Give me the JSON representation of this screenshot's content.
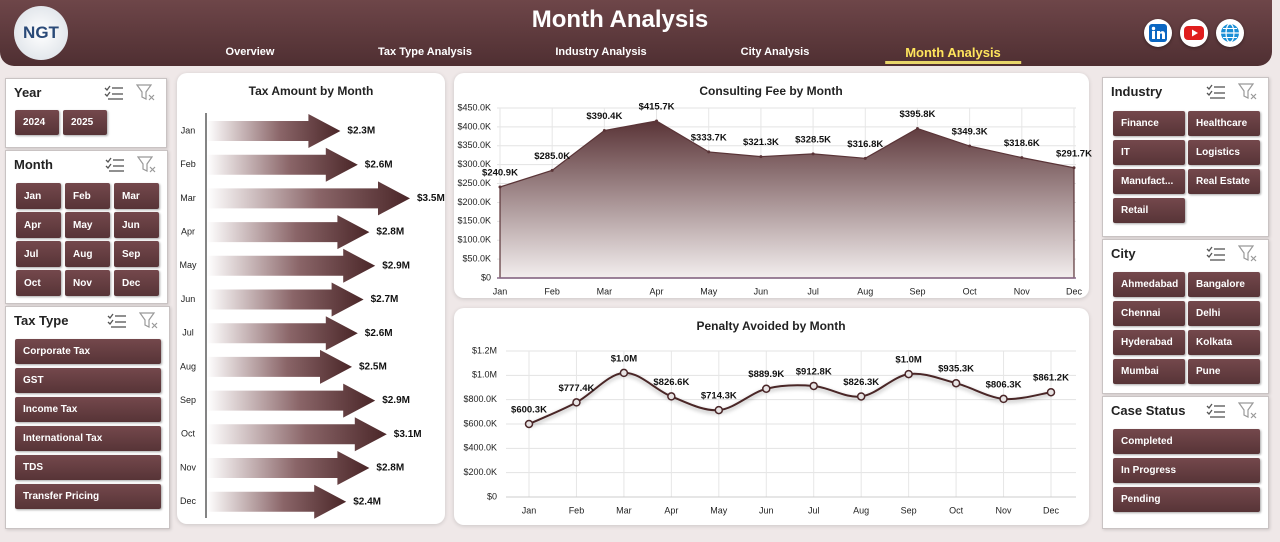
{
  "header": {
    "logo": "NGT",
    "title": "Month Analysis",
    "nav": [
      "Overview",
      "Tax Type Analysis",
      "Industry Analysis",
      "City Analysis",
      "Month Analysis"
    ],
    "active_nav": 4
  },
  "slicers": [
    {
      "title": "Year",
      "items": [
        "2024",
        "2025"
      ]
    },
    {
      "title": "Month",
      "items": [
        "Jan",
        "Feb",
        "Mar",
        "Apr",
        "May",
        "Jun",
        "Jul",
        "Aug",
        "Sep",
        "Oct",
        "Nov",
        "Dec"
      ]
    },
    {
      "title": "Tax Type",
      "items": [
        "Corporate Tax",
        "GST",
        "Income Tax",
        "International Tax",
        "TDS",
        "Transfer Pricing"
      ]
    },
    {
      "title": "Industry",
      "items": [
        "Finance",
        "Healthcare",
        "IT",
        "Logistics",
        "Manufact...",
        "Real Estate",
        "Retail"
      ]
    },
    {
      "title": "City",
      "items": [
        "Ahmedabad",
        "Bangalore",
        "Chennai",
        "Delhi",
        "Hyderabad",
        "Kolkata",
        "Mumbai",
        "Pune"
      ]
    },
    {
      "title": "Case Status",
      "items": [
        "Completed",
        "In Progress",
        "Pending"
      ]
    }
  ],
  "chart_data": [
    {
      "type": "arrow-bar",
      "title": "Tax Amount by Month",
      "categories": [
        "Jan",
        "Feb",
        "Mar",
        "Apr",
        "May",
        "Jun",
        "Jul",
        "Aug",
        "Sep",
        "Oct",
        "Nov",
        "Dec"
      ],
      "values": [
        2.3,
        2.6,
        3.5,
        2.8,
        2.9,
        2.7,
        2.6,
        2.5,
        2.9,
        3.1,
        2.8,
        2.4
      ],
      "value_labels": [
        "$2.3M",
        "$2.6M",
        "$3.5M",
        "$2.8M",
        "$2.9M",
        "$2.7M",
        "$2.6M",
        "$2.5M",
        "$2.9M",
        "$3.1M",
        "$2.8M",
        "$2.4M"
      ],
      "color": "#4a2628"
    },
    {
      "type": "area",
      "title": "Consulting Fee by Month",
      "categories": [
        "Jan",
        "Feb",
        "Mar",
        "Apr",
        "May",
        "Jun",
        "Jul",
        "Aug",
        "Sep",
        "Oct",
        "Nov",
        "Dec"
      ],
      "values": [
        240.9,
        285.0,
        390.4,
        415.7,
        333.7,
        321.3,
        328.5,
        316.8,
        395.8,
        349.3,
        318.6,
        291.7
      ],
      "value_labels": [
        "$240.9K",
        "$285.0K",
        "$390.4K",
        "$415.7K",
        "$333.7K",
        "$321.3K",
        "$328.5K",
        "$316.8K",
        "$395.8K",
        "$349.3K",
        "$318.6K",
        "$291.7K"
      ],
      "ylim": [
        0,
        450
      ],
      "yticks": [
        {
          "value": 0,
          "label": "$0"
        },
        {
          "value": 50,
          "label": "$50.0K"
        },
        {
          "value": 100,
          "label": "$100.0K"
        },
        {
          "value": 150,
          "label": "$150.0K"
        },
        {
          "value": 200,
          "label": "$200.0K"
        },
        {
          "value": 250,
          "label": "$250.0K"
        },
        {
          "value": 300,
          "label": "$300.0K"
        },
        {
          "value": 350,
          "label": "$350.0K"
        },
        {
          "value": 400,
          "label": "$400.0K"
        },
        {
          "value": 450,
          "label": "$450.0K"
        }
      ],
      "color": "#5a3437",
      "grid": true
    },
    {
      "type": "line",
      "title": "Penalty Avoided by Month",
      "categories": [
        "Jan",
        "Feb",
        "Mar",
        "Apr",
        "May",
        "Jun",
        "Jul",
        "Aug",
        "Sep",
        "Oct",
        "Nov",
        "Dec"
      ],
      "values": [
        600.3,
        777.4,
        1020,
        826.6,
        714.3,
        889.9,
        912.8,
        826.3,
        1010,
        935.3,
        806.3,
        861.2
      ],
      "value_labels": [
        "$600.3K",
        "$777.4K",
        "$1.0M",
        "$826.6K",
        "$714.3K",
        "$889.9K",
        "$912.8K",
        "$826.3K",
        "$1.0M",
        "$935.3K",
        "$806.3K",
        "$861.2K"
      ],
      "ylim": [
        0,
        1200
      ],
      "yticks": [
        {
          "value": 0,
          "label": "$0"
        },
        {
          "value": 200,
          "label": "$200.0K"
        },
        {
          "value": 400,
          "label": "$400.0K"
        },
        {
          "value": 600,
          "label": "$600.0K"
        },
        {
          "value": 800,
          "label": "$800.0K"
        },
        {
          "value": 1000,
          "label": "$1.0M"
        },
        {
          "value": 1200,
          "label": "$1.2M"
        }
      ],
      "color": "#4a2628",
      "grid": true
    }
  ]
}
